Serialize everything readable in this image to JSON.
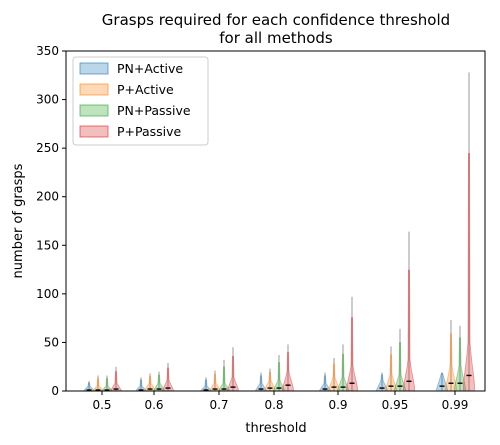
{
  "chart_data": {
    "type": "violin",
    "title_lines": [
      "Grasps required for each confidence threshold",
      "for all methods"
    ],
    "xlabel": "threshold",
    "ylabel": "number of grasps",
    "ylim": [
      0,
      350
    ],
    "yticks": [
      0,
      50,
      100,
      150,
      200,
      250,
      300,
      350
    ],
    "categories": [
      "0.5",
      "0.6",
      "0.7",
      "0.8",
      "0.9",
      "0.95",
      "0.99"
    ],
    "legend_position": "top-left",
    "series": [
      {
        "name": "PN+Active",
        "color": "#1f77b4",
        "median": [
          1,
          1,
          1,
          2,
          2,
          3,
          5
        ],
        "max": [
          10,
          14,
          14,
          19,
          19,
          19,
          19
        ]
      },
      {
        "name": "P+Active",
        "color": "#ff7f0e",
        "median": [
          1,
          2,
          2,
          3,
          4,
          5,
          8
        ],
        "max": [
          16,
          18,
          21,
          23,
          34,
          46,
          73
        ]
      },
      {
        "name": "PN+Passive",
        "color": "#2ca02c",
        "median": [
          1,
          2,
          2,
          3,
          4,
          5,
          8
        ],
        "max": [
          16,
          20,
          32,
          37,
          48,
          64,
          67
        ]
      },
      {
        "name": "P+Passive",
        "color": "#d62728",
        "median": [
          2,
          3,
          4,
          6,
          8,
          10,
          16
        ],
        "max": [
          25,
          29,
          45,
          48,
          97,
          164,
          328
        ]
      }
    ]
  }
}
